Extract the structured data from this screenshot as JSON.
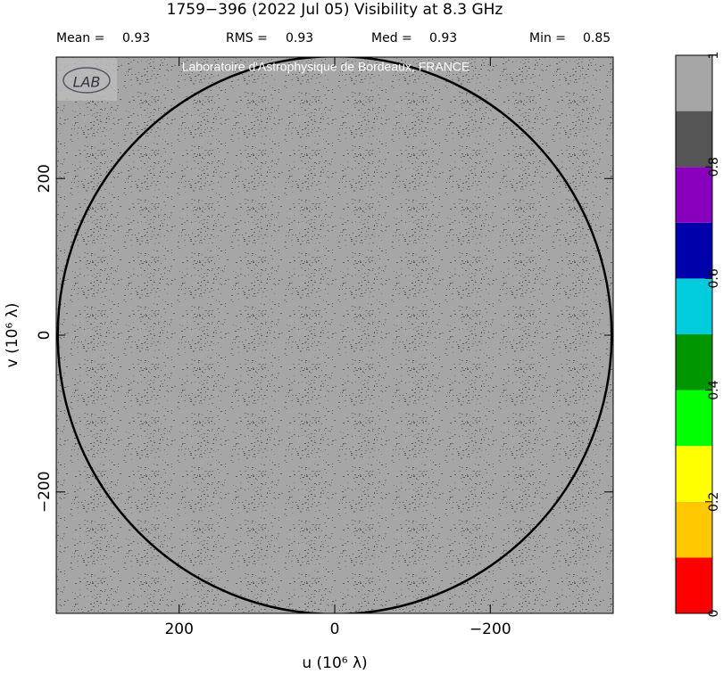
{
  "chart_data": {
    "type": "visibility-map",
    "title": "1759−396  (2022 Jul 05)   Visibility at  8.3 GHz",
    "stats": [
      {
        "label": "Mean =",
        "value": 0.93
      },
      {
        "label": "RMS =",
        "value": 0.93
      },
      {
        "label": "Med =",
        "value": 0.93
      },
      {
        "label": "Min =",
        "value": 0.85
      }
    ],
    "watermark": "Laboratoire d'Astrophysique de Bordeaux, FRANCE",
    "xlabel": "u  (10⁶ λ)",
    "ylabel": "v  (10⁶ λ)",
    "xlim": [
      358,
      -358
    ],
    "ylim": [
      -355,
      355
    ],
    "xticks": [
      200,
      0,
      {
        "value": -200,
        "label": "−200"
      }
    ],
    "yticks": [
      {
        "value": -200,
        "label": "−200"
      },
      0,
      200
    ],
    "circle_radius": 356,
    "colorbar": {
      "zlim": [
        0,
        1
      ],
      "zticks": [
        0,
        0.2,
        0.4,
        0.6,
        0.8,
        1
      ],
      "colors": [
        "#ff0000",
        "#ffc800",
        "#ffff00",
        "#00ff00",
        "#009600",
        "#00ccdd",
        "#0000aa",
        "#8800bb",
        "#555555",
        "#a6a6a6"
      ]
    }
  }
}
